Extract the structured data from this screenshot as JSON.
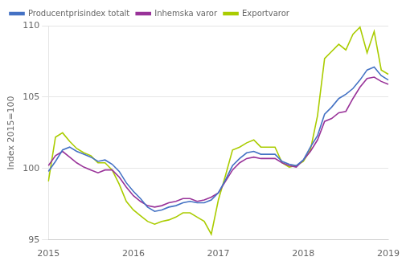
{
  "chart_data": {
    "type": "line",
    "ylabel": "Index 2015=100",
    "categories": [
      "2015",
      null,
      null,
      null,
      null,
      null,
      null,
      null,
      null,
      null,
      null,
      null,
      "2016",
      null,
      null,
      null,
      null,
      null,
      null,
      null,
      null,
      null,
      null,
      null,
      "2017",
      null,
      null,
      null,
      null,
      null,
      null,
      null,
      null,
      null,
      null,
      null,
      "2018",
      null,
      null,
      null,
      null,
      null,
      null,
      null,
      null,
      null,
      null,
      null,
      "2019"
    ],
    "series": [
      {
        "name": "Producentprisindex totalt",
        "color": "#4472C4",
        "values": [
          99.8,
          100.5,
          101.3,
          101.5,
          101.2,
          101.0,
          100.8,
          100.5,
          100.6,
          100.3,
          99.8,
          99.0,
          98.4,
          97.9,
          97.3,
          97.0,
          97.1,
          97.3,
          97.4,
          97.6,
          97.7,
          97.6,
          97.6,
          97.8,
          98.3,
          99.2,
          100.2,
          100.7,
          101.1,
          101.2,
          101.0,
          101.0,
          101.0,
          100.5,
          100.3,
          100.2,
          100.6,
          101.5,
          102.3,
          103.8,
          104.3,
          104.9,
          105.2,
          105.6,
          106.2,
          106.9,
          107.1,
          106.5,
          106.2
        ]
      },
      {
        "name": "Inhemska varor",
        "color": "#993399",
        "values": [
          100.2,
          100.9,
          101.2,
          100.8,
          100.4,
          100.1,
          99.9,
          99.7,
          99.9,
          99.9,
          99.4,
          98.7,
          98.1,
          97.7,
          97.4,
          97.3,
          97.4,
          97.6,
          97.7,
          97.9,
          97.9,
          97.7,
          97.8,
          98.0,
          98.3,
          99.1,
          99.9,
          100.4,
          100.7,
          100.8,
          100.7,
          100.7,
          100.7,
          100.4,
          100.2,
          100.1,
          100.6,
          101.2,
          102.0,
          103.3,
          103.5,
          103.9,
          104.0,
          104.9,
          105.7,
          106.3,
          106.4,
          106.1,
          105.9
        ]
      },
      {
        "name": "Exportvaror",
        "color": "#AACC00",
        "values": [
          99.1,
          102.2,
          102.5,
          101.9,
          101.4,
          101.1,
          100.9,
          100.4,
          100.4,
          99.9,
          98.9,
          97.7,
          97.1,
          96.7,
          96.3,
          96.1,
          96.3,
          96.4,
          96.6,
          96.9,
          96.9,
          96.6,
          96.3,
          95.4,
          97.8,
          99.5,
          101.3,
          101.5,
          101.8,
          102.0,
          101.5,
          101.5,
          101.5,
          100.4,
          100.1,
          100.2,
          100.5,
          101.3,
          103.7,
          107.7,
          108.2,
          108.7,
          108.3,
          109.4,
          109.9,
          108.1,
          109.6,
          106.9,
          106.6
        ]
      }
    ],
    "ylim": [
      95,
      110
    ],
    "yticks": [
      95,
      100,
      105,
      110
    ],
    "grid": "y",
    "legend": "upper left"
  }
}
